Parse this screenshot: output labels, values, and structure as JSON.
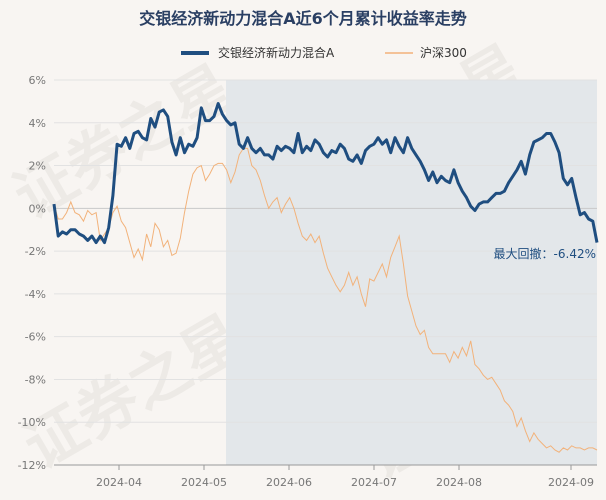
{
  "chart_data": {
    "type": "line",
    "title": "交银经济新动力混合A近6个月累计收益率走势",
    "legend": {
      "placement": "top"
    },
    "series": [
      {
        "name": "交银经济新动力混合A",
        "color": "#1f4e80"
      },
      {
        "name": "沪深300",
        "color": "#f2b27a"
      }
    ],
    "x_tick_labels": [
      "2024-04",
      "2024-05",
      "2024-06",
      "2024-07",
      "2024-08",
      "2024-09"
    ],
    "y_ticks": [
      6,
      4,
      2,
      0,
      -2,
      -4,
      -6,
      -8,
      -10,
      -12
    ],
    "y_tick_labels": [
      "6%",
      "4%",
      "2%",
      "0%",
      "-2%",
      "-4%",
      "-6%",
      "-8%",
      "-10%",
      "-12%"
    ],
    "ylim": [
      -12,
      6
    ],
    "drawdown_label": "最大回撤：-6.42%",
    "drawdown_shade_color": "#e3e7ea",
    "grid": "horizontal",
    "fund_values": [
      0.2,
      -1.3,
      -1.1,
      -1.2,
      -1.0,
      -1.0,
      -1.2,
      -1.3,
      -1.5,
      -1.3,
      -1.6,
      -1.3,
      -1.6,
      -0.9,
      0.6,
      3.0,
      2.9,
      3.3,
      2.8,
      3.5,
      3.6,
      3.3,
      3.2,
      4.2,
      3.8,
      4.5,
      4.6,
      4.3,
      3.1,
      2.5,
      3.3,
      2.6,
      3.0,
      2.9,
      3.3,
      4.7,
      4.1,
      4.1,
      4.3,
      4.9,
      4.4,
      4.1,
      3.9,
      4.0,
      3.0,
      2.8,
      3.3,
      2.8,
      2.6,
      2.8,
      2.5,
      2.5,
      2.3,
      2.9,
      2.7,
      2.9,
      2.8,
      2.6,
      3.5,
      2.6,
      2.9,
      2.7,
      3.2,
      3.0,
      2.6,
      2.4,
      2.7,
      2.6,
      3.0,
      2.8,
      2.3,
      2.2,
      2.5,
      2.1,
      2.7,
      2.9,
      3.0,
      3.3,
      3.0,
      3.2,
      2.6,
      3.3,
      2.9,
      2.6,
      3.3,
      2.8,
      2.5,
      2.2,
      1.8,
      1.3,
      1.7,
      1.2,
      1.5,
      1.3,
      1.2,
      1.8,
      1.2,
      0.8,
      0.5,
      0.1,
      -0.1,
      0.2,
      0.3,
      0.3,
      0.5,
      0.7,
      0.7,
      0.8,
      1.2,
      1.5,
      1.8,
      2.2,
      1.6,
      2.5,
      3.1,
      3.2,
      3.3,
      3.5,
      3.5,
      3.1,
      2.6,
      1.4,
      1.1,
      1.4,
      0.5,
      -0.3,
      -0.2,
      -0.5,
      -0.6,
      -1.6
    ],
    "csi300_values": [
      0.2,
      -0.5,
      -0.5,
      -0.2,
      0.3,
      -0.2,
      -0.3,
      -0.6,
      -0.1,
      -0.3,
      -0.2,
      -1.5,
      -1.2,
      -0.9,
      -0.2,
      0.1,
      -0.6,
      -0.9,
      -1.6,
      -2.3,
      -1.9,
      -2.4,
      -1.2,
      -1.8,
      -0.7,
      -1.0,
      -1.8,
      -1.5,
      -2.2,
      -2.1,
      -1.4,
      -0.2,
      0.8,
      1.6,
      1.9,
      2.0,
      1.3,
      1.6,
      2.0,
      2.1,
      2.1,
      1.8,
      1.2,
      1.7,
      2.5,
      2.8,
      2.8,
      2.0,
      1.8,
      1.3,
      0.6,
      0.0,
      0.3,
      0.5,
      -0.2,
      0.2,
      0.5,
      0.0,
      -0.7,
      -1.3,
      -1.5,
      -1.2,
      -1.6,
      -1.3,
      -2.1,
      -2.8,
      -3.2,
      -3.6,
      -3.9,
      -3.6,
      -3.0,
      -3.6,
      -3.2,
      -4.0,
      -4.6,
      -3.3,
      -3.4,
      -3.0,
      -2.6,
      -3.2,
      -2.3,
      -1.8,
      -1.3,
      -2.6,
      -4.1,
      -4.8,
      -5.5,
      -5.9,
      -5.7,
      -6.5,
      -6.8,
      -6.8,
      -6.8,
      -6.8,
      -7.2,
      -6.7,
      -7.0,
      -6.5,
      -6.9,
      -6.2,
      -7.3,
      -7.5,
      -7.8,
      -8.0,
      -7.9,
      -8.2,
      -8.5,
      -9.0,
      -9.2,
      -9.5,
      -10.2,
      -9.8,
      -10.4,
      -10.9,
      -10.5,
      -10.8,
      -11.0,
      -11.2,
      -11.1,
      -11.3,
      -11.4,
      -11.2,
      -11.3,
      -11.1,
      -11.2,
      -11.2,
      -11.3,
      -11.2,
      -11.2,
      -11.3
    ]
  }
}
